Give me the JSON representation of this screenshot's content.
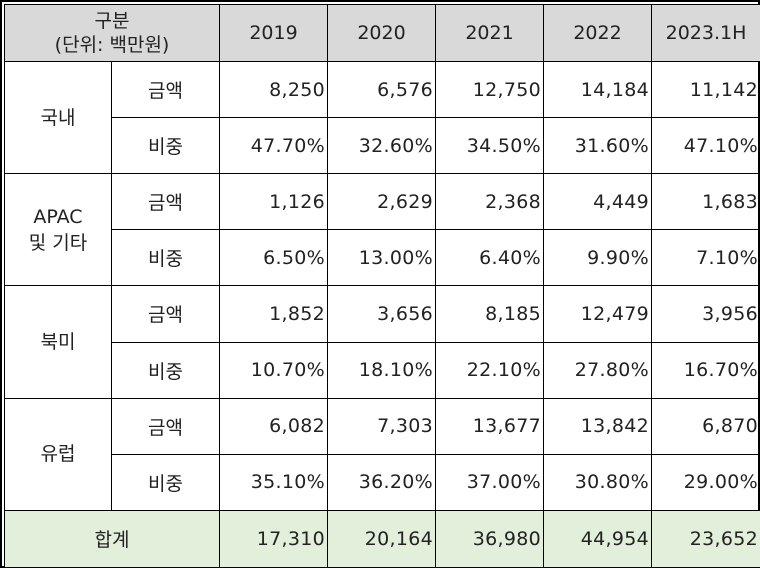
{
  "header": {
    "label_line1": "구분",
    "label_line2": "(단위: 백만원)",
    "years": [
      "2019",
      "2020",
      "2021",
      "2022",
      "2023.1H"
    ]
  },
  "metrics": {
    "amount": "금액",
    "share": "비중"
  },
  "regions": [
    {
      "name_line1": "국내",
      "name_line2": "",
      "amount": [
        "8,250",
        "6,576",
        "12,750",
        "14,184",
        "11,142"
      ],
      "share": [
        "47.70%",
        "32.60%",
        "34.50%",
        "31.60%",
        "47.10%"
      ]
    },
    {
      "name_line1": "APAC",
      "name_line2": "및 기타",
      "amount": [
        "1,126",
        "2,629",
        "2,368",
        "4,449",
        "1,683"
      ],
      "share": [
        "6.50%",
        "13.00%",
        "6.40%",
        "9.90%",
        "7.10%"
      ]
    },
    {
      "name_line1": "북미",
      "name_line2": "",
      "amount": [
        "1,852",
        "3,656",
        "8,185",
        "12,479",
        "3,956"
      ],
      "share": [
        "10.70%",
        "18.10%",
        "22.10%",
        "27.80%",
        "16.70%"
      ]
    },
    {
      "name_line1": "유럽",
      "name_line2": "",
      "amount": [
        "6,082",
        "7,303",
        "13,677",
        "13,842",
        "6,870"
      ],
      "share": [
        "35.10%",
        "36.20%",
        "37.00%",
        "30.80%",
        "29.00%"
      ]
    }
  ],
  "total": {
    "label": "합계",
    "values": [
      "17,310",
      "20,164",
      "36,980",
      "44,954",
      "23,652"
    ]
  }
}
